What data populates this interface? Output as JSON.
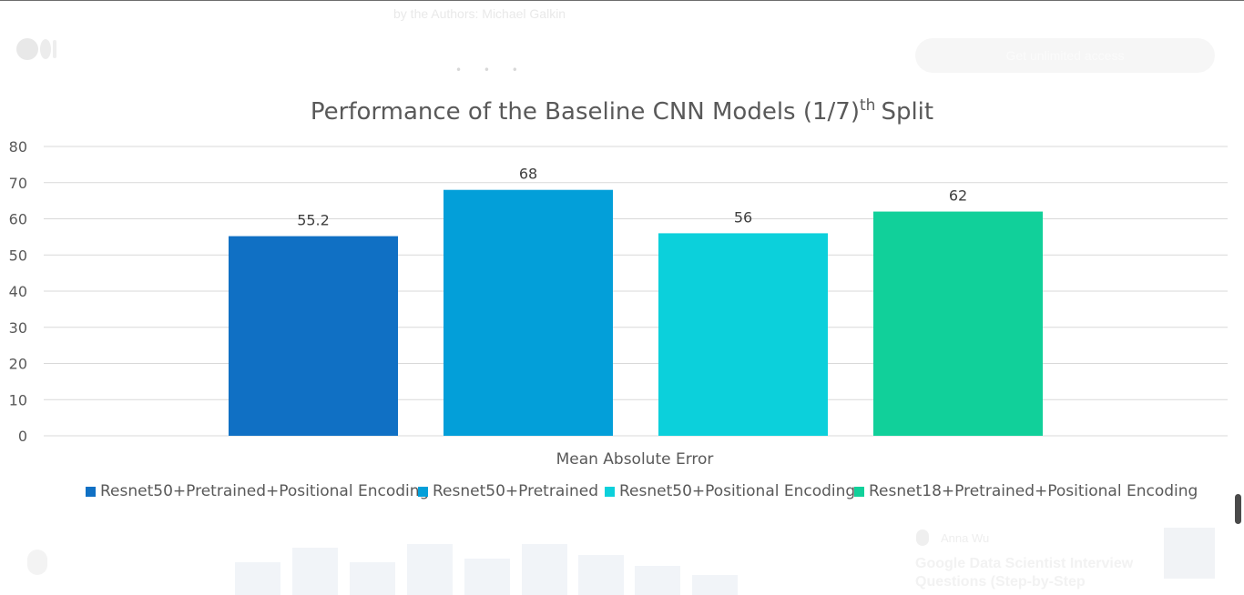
{
  "page": {
    "caption": "by the Authors: Michael Galkin",
    "cta_label": "Get unlimited access",
    "colors": {
      "text": "#595959",
      "grid": "#d9d9d9",
      "background": "#ffffff"
    },
    "related_article": {
      "author": "Anna Wu",
      "headline": "Google Data Scientist Interview Questions (Step-by-Step"
    }
  },
  "chart_data": {
    "type": "bar",
    "title": "Performance of the Baseline CNN Models (1/7)",
    "title_superscript": "th",
    "title_suffix": "Split",
    "xlabel": "Mean Absolute Error",
    "ylabel": "",
    "ylim": [
      0,
      80
    ],
    "yticks": [
      0,
      10,
      20,
      30,
      40,
      50,
      60,
      70,
      80
    ],
    "grid": true,
    "legend_position": "bottom",
    "categories": [
      "Mean Absolute Error"
    ],
    "series": [
      {
        "name": "Resnet50+Pretrained+Positional Encoding",
        "values": [
          55.2
        ],
        "color": "#1070c4"
      },
      {
        "name": "Resnet50+Pretrained",
        "values": [
          68
        ],
        "color": "#039fd9"
      },
      {
        "name": "Resnet50+Positional Encoding",
        "values": [
          56
        ],
        "color": "#0cd0db"
      },
      {
        "name": "Resnet18+Pretrained+Positional Encoding",
        "values": [
          62
        ],
        "color": "#11d09a"
      }
    ]
  }
}
